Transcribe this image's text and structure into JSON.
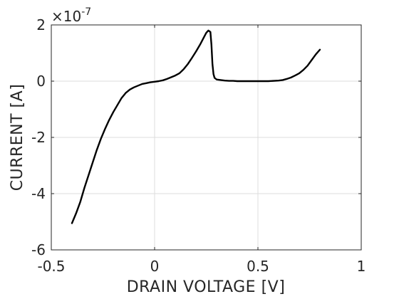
{
  "chart_data": {
    "type": "line",
    "title": "",
    "xlabel": "DRAIN VOLTAGE  [V]",
    "ylabel": "CURRENT  [A]",
    "xlim": [
      -0.5,
      1
    ],
    "ylim": [
      -6,
      2
    ],
    "y_scale_exponent_label": {
      "base": "×10",
      "exponent": "-7"
    },
    "x_ticks": [
      {
        "value": -0.5,
        "label": "-0.5"
      },
      {
        "value": 0,
        "label": "0"
      },
      {
        "value": 0.5,
        "label": "0.5"
      },
      {
        "value": 1,
        "label": "1"
      }
    ],
    "y_ticks": [
      {
        "value": -6,
        "label": "-6"
      },
      {
        "value": -4,
        "label": "-4"
      },
      {
        "value": -2,
        "label": "-2"
      },
      {
        "value": 0,
        "label": "0"
      },
      {
        "value": 2,
        "label": "2"
      }
    ],
    "grid": true,
    "line_color": "#000000",
    "series": [
      {
        "x": [
          -0.4,
          -0.38,
          -0.36,
          -0.34,
          -0.32,
          -0.3,
          -0.28,
          -0.26,
          -0.24,
          -0.22,
          -0.2,
          -0.18,
          -0.16,
          -0.14,
          -0.12,
          -0.1,
          -0.08,
          -0.06,
          -0.04,
          -0.02,
          0.0,
          0.02,
          0.04,
          0.06,
          0.08,
          0.1,
          0.12,
          0.14,
          0.16,
          0.18,
          0.2,
          0.22,
          0.24,
          0.25,
          0.26,
          0.27,
          0.275,
          0.28,
          0.285,
          0.29,
          0.3,
          0.32,
          0.34,
          0.36,
          0.38,
          0.4,
          0.45,
          0.5,
          0.55,
          0.6,
          0.62,
          0.64,
          0.66,
          0.68,
          0.7,
          0.72,
          0.74,
          0.76,
          0.78,
          0.8
        ],
        "y": [
          -5.05,
          -4.7,
          -4.3,
          -3.8,
          -3.35,
          -2.9,
          -2.45,
          -2.05,
          -1.7,
          -1.38,
          -1.1,
          -0.85,
          -0.6,
          -0.42,
          -0.3,
          -0.22,
          -0.16,
          -0.1,
          -0.07,
          -0.04,
          -0.02,
          0.0,
          0.03,
          0.08,
          0.14,
          0.2,
          0.28,
          0.42,
          0.6,
          0.82,
          1.05,
          1.3,
          1.58,
          1.72,
          1.8,
          1.75,
          1.3,
          0.6,
          0.25,
          0.12,
          0.06,
          0.04,
          0.02,
          0.01,
          0.01,
          0.0,
          0.0,
          0.0,
          0.0,
          0.02,
          0.04,
          0.08,
          0.13,
          0.2,
          0.28,
          0.4,
          0.55,
          0.75,
          0.95,
          1.12
        ]
      }
    ]
  }
}
